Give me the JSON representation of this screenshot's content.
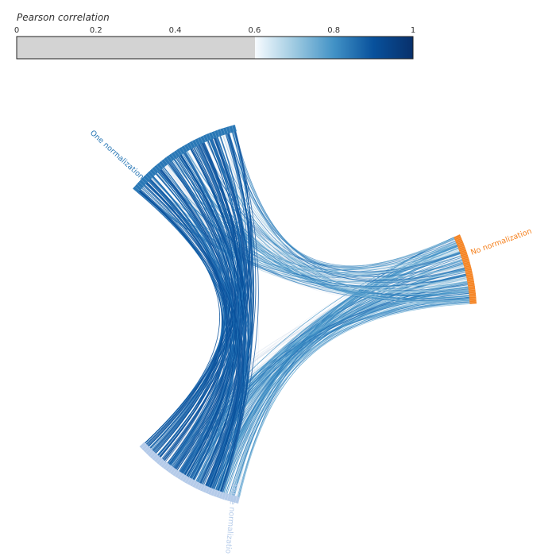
{
  "legend": {
    "title": "Pearson correlation",
    "ticks": [
      "0",
      "0.2",
      "0.4",
      "0.6",
      "0.8",
      "1"
    ],
    "tick_values": [
      0,
      0.2,
      0.4,
      0.6,
      0.8,
      1
    ],
    "threshold": 0.6,
    "gray_color": "#d3d3d3",
    "gradient_colors": [
      "#f7fbff",
      "#9ecae1",
      "#4292c6",
      "#08519c",
      "#08306b"
    ]
  },
  "groups": [
    {
      "key": "one",
      "label": "One normalization",
      "color": "#2a78b6"
    },
    {
      "key": "no",
      "label": "No normalization",
      "color": "#f58220"
    },
    {
      "key": "three",
      "label": "Three normalizatio",
      "color": "#b5cbe9"
    }
  ]
}
